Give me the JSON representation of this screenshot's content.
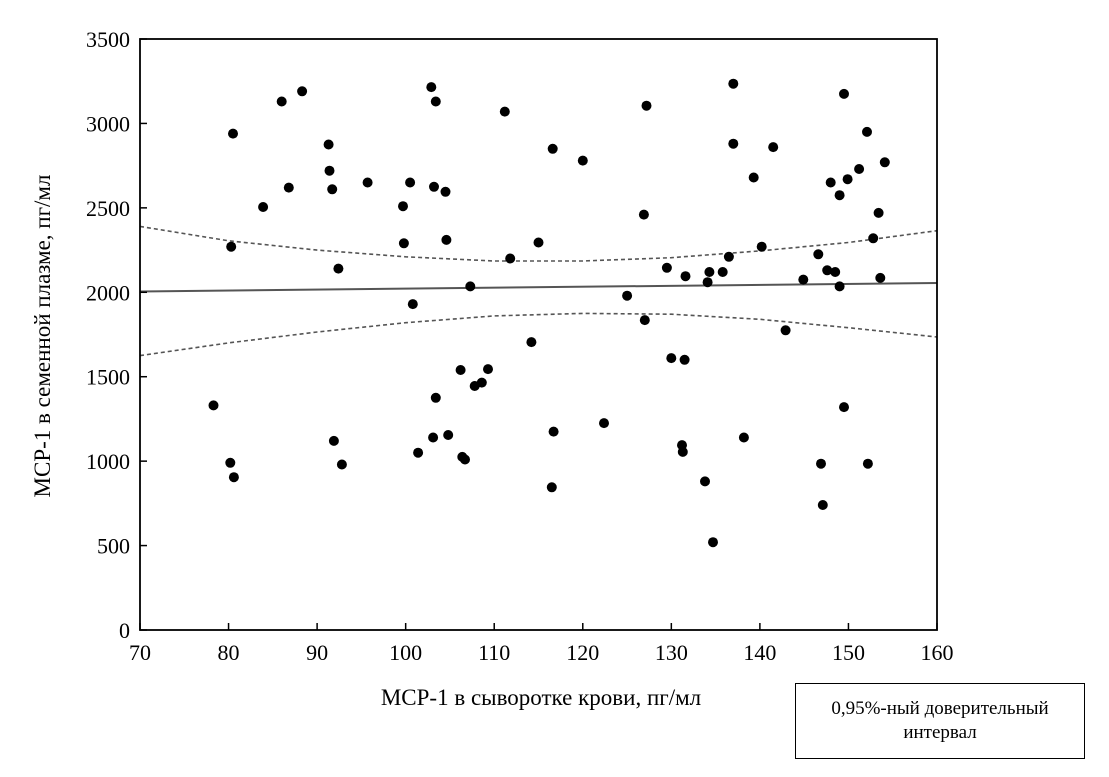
{
  "chart_data": {
    "type": "scatter",
    "xlabel": "MCP-1 в сыворотке крови, пг/мл",
    "ylabel": "MCP-1 в семенной плазме, пг/мл",
    "xlim": [
      70,
      160
    ],
    "ylim": [
      0,
      3500
    ],
    "xticks": [
      70,
      80,
      90,
      100,
      110,
      120,
      130,
      140,
      150,
      160
    ],
    "yticks": [
      0,
      500,
      1000,
      1500,
      2000,
      2500,
      3000,
      3500
    ],
    "grid": false,
    "points": [
      [
        78.3,
        1330
      ],
      [
        80.2,
        990
      ],
      [
        80.3,
        2270
      ],
      [
        80.5,
        2940
      ],
      [
        80.6,
        905
      ],
      [
        83.9,
        2505
      ],
      [
        86.0,
        3130
      ],
      [
        86.8,
        2620
      ],
      [
        88.3,
        3190
      ],
      [
        91.3,
        2875
      ],
      [
        91.4,
        2720
      ],
      [
        91.7,
        2610
      ],
      [
        91.9,
        1120
      ],
      [
        92.4,
        2140
      ],
      [
        92.8,
        980
      ],
      [
        95.7,
        2650
      ],
      [
        99.7,
        2510
      ],
      [
        99.8,
        2290
      ],
      [
        100.5,
        2650
      ],
      [
        100.8,
        1930
      ],
      [
        101.4,
        1050
      ],
      [
        102.9,
        3215
      ],
      [
        103.1,
        1140
      ],
      [
        103.2,
        2625
      ],
      [
        103.4,
        3130
      ],
      [
        103.4,
        1375
      ],
      [
        104.5,
        2595
      ],
      [
        104.6,
        2310
      ],
      [
        104.8,
        1155
      ],
      [
        106.2,
        1540
      ],
      [
        106.4,
        1025
      ],
      [
        106.7,
        1010
      ],
      [
        107.3,
        2035
      ],
      [
        107.8,
        1445
      ],
      [
        108.6,
        1465
      ],
      [
        109.3,
        1545
      ],
      [
        111.2,
        3070
      ],
      [
        111.8,
        2200
      ],
      [
        114.2,
        1705
      ],
      [
        115.0,
        2295
      ],
      [
        116.5,
        845
      ],
      [
        116.6,
        2850
      ],
      [
        116.7,
        1175
      ],
      [
        120.0,
        2780
      ],
      [
        122.4,
        1225
      ],
      [
        125.0,
        1980
      ],
      [
        126.9,
        2460
      ],
      [
        127.0,
        1835
      ],
      [
        127.2,
        3105
      ],
      [
        129.5,
        2145
      ],
      [
        130.0,
        1610
      ],
      [
        131.2,
        1095
      ],
      [
        131.3,
        1055
      ],
      [
        131.5,
        1600
      ],
      [
        131.6,
        2095
      ],
      [
        133.8,
        880
      ],
      [
        134.1,
        2060
      ],
      [
        134.3,
        2120
      ],
      [
        134.7,
        520
      ],
      [
        135.8,
        2120
      ],
      [
        136.5,
        2210
      ],
      [
        137.0,
        3235
      ],
      [
        137.0,
        2880
      ],
      [
        138.2,
        1140
      ],
      [
        139.3,
        2680
      ],
      [
        140.2,
        2270
      ],
      [
        141.5,
        2860
      ],
      [
        142.9,
        1775
      ],
      [
        144.9,
        2075
      ],
      [
        146.6,
        2225
      ],
      [
        146.9,
        985
      ],
      [
        147.1,
        740
      ],
      [
        147.6,
        2130
      ],
      [
        148.0,
        2650
      ],
      [
        148.5,
        2120
      ],
      [
        149.0,
        2035
      ],
      [
        149.0,
        2575
      ],
      [
        149.5,
        3175
      ],
      [
        149.5,
        1320
      ],
      [
        149.9,
        2670
      ],
      [
        151.2,
        2730
      ],
      [
        152.1,
        2950
      ],
      [
        152.2,
        985
      ],
      [
        152.8,
        2320
      ],
      [
        153.4,
        2470
      ],
      [
        153.6,
        2085
      ],
      [
        154.1,
        2770
      ]
    ],
    "regression": {
      "x": [
        70,
        160
      ],
      "y": [
        2005,
        2055
      ]
    },
    "ci_lower": {
      "x": [
        70,
        80,
        90,
        100,
        110,
        120,
        130,
        140,
        150,
        160
      ],
      "y": [
        1625,
        1700,
        1765,
        1820,
        1860,
        1875,
        1870,
        1840,
        1790,
        1735
      ]
    },
    "ci_upper": {
      "x": [
        70,
        80,
        90,
        100,
        110,
        120,
        130,
        140,
        150,
        160
      ],
      "y": [
        2390,
        2305,
        2250,
        2210,
        2185,
        2185,
        2205,
        2245,
        2295,
        2365
      ]
    },
    "legend": {
      "line1": "0,95%-ный доверительный",
      "line2": "интервал",
      "placement": "bottom-right"
    }
  }
}
